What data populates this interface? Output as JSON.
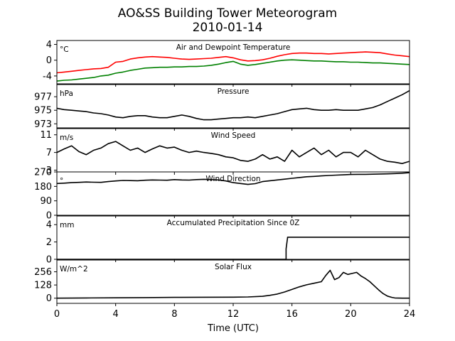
{
  "figure": {
    "title_line1": "AO&SS Building Tower Meteorogram",
    "title_line2": "2010-01-14",
    "xlabel": "Time (UTC)"
  },
  "chart_data": {
    "type": "line",
    "x_ticks": [
      0,
      4,
      8,
      12,
      16,
      20,
      24
    ],
    "xlim": [
      0,
      24
    ],
    "panels": [
      {
        "id": "temperature",
        "title": "Air and Dewpoint Temperature",
        "unit": "°C",
        "ylim": [
          -6,
          5
        ],
        "yticks": [
          4,
          0,
          -4
        ],
        "series": [
          {
            "color": "#ff0000",
            "x": [
              0,
              0.5,
              1,
              1.5,
              2,
              2.5,
              3,
              3.5,
              4,
              4.5,
              5,
              5.5,
              6,
              6.5,
              7,
              7.5,
              8,
              8.5,
              9,
              9.5,
              10,
              10.5,
              11,
              11.5,
              12,
              12.5,
              13,
              13.5,
              14,
              14.5,
              15,
              15.5,
              16,
              16.5,
              17,
              17.5,
              18,
              18.5,
              19,
              19.5,
              20,
              20.5,
              21,
              21.5,
              22,
              22.5,
              23,
              23.5,
              24
            ],
            "y": [
              -3.2,
              -3.0,
              -2.8,
              -2.6,
              -2.4,
              -2.2,
              -2.1,
              -1.8,
              -0.5,
              -0.3,
              0.3,
              0.6,
              0.8,
              0.9,
              0.8,
              0.7,
              0.5,
              0.3,
              0.2,
              0.3,
              0.4,
              0.5,
              0.7,
              0.9,
              0.6,
              0.1,
              -0.2,
              -0.1,
              0.1,
              0.5,
              1.0,
              1.4,
              1.7,
              1.8,
              1.8,
              1.7,
              1.7,
              1.6,
              1.7,
              1.8,
              1.9,
              2.0,
              2.1,
              2.0,
              1.9,
              1.6,
              1.3,
              1.1,
              0.9
            ]
          },
          {
            "color": "#008000",
            "x": [
              0,
              0.5,
              1,
              1.5,
              2,
              2.5,
              3,
              3.5,
              4,
              4.5,
              5,
              5.5,
              6,
              6.5,
              7,
              7.5,
              8,
              8.5,
              9,
              9.5,
              10,
              10.5,
              11,
              11.5,
              12,
              12.5,
              13,
              13.5,
              14,
              14.5,
              15,
              15.5,
              16,
              16.5,
              17,
              17.5,
              18,
              18.5,
              19,
              19.5,
              20,
              20.5,
              21,
              21.5,
              22,
              22.5,
              23,
              23.5,
              24
            ],
            "y": [
              -5.3,
              -5.1,
              -5.0,
              -4.8,
              -4.6,
              -4.4,
              -4.0,
              -3.8,
              -3.3,
              -3.0,
              -2.6,
              -2.3,
              -2.0,
              -1.9,
              -1.8,
              -1.8,
              -1.7,
              -1.7,
              -1.6,
              -1.6,
              -1.5,
              -1.3,
              -1.0,
              -0.6,
              -0.3,
              -1.0,
              -1.3,
              -1.1,
              -0.8,
              -0.5,
              -0.2,
              0.0,
              0.1,
              0.0,
              -0.1,
              -0.2,
              -0.2,
              -0.3,
              -0.4,
              -0.4,
              -0.5,
              -0.5,
              -0.6,
              -0.7,
              -0.7,
              -0.8,
              -0.9,
              -1.0,
              -1.1
            ]
          }
        ]
      },
      {
        "id": "pressure",
        "title": "Pressure",
        "unit": "hPa",
        "ylim": [
          972.4,
          978.8
        ],
        "yticks": [
          977,
          975,
          973
        ],
        "series": [
          {
            "color": "#000000",
            "x": [
              0,
              0.5,
              1,
              1.5,
              2,
              2.5,
              3,
              3.5,
              4,
              4.5,
              5,
              5.5,
              6,
              6.5,
              7,
              7.5,
              8,
              8.5,
              9,
              9.5,
              10,
              10.5,
              11,
              11.5,
              12,
              12.5,
              13,
              13.5,
              14,
              14.5,
              15,
              15.5,
              16,
              16.5,
              17,
              17.5,
              18,
              18.5,
              19,
              19.5,
              20,
              20.5,
              21,
              21.5,
              22,
              22.5,
              23,
              23.5,
              24
            ],
            "y": [
              975.3,
              975.1,
              975.0,
              974.9,
              974.8,
              974.6,
              974.5,
              974.3,
              974.0,
              973.9,
              974.1,
              974.2,
              974.2,
              974.0,
              973.9,
              973.9,
              974.1,
              974.3,
              974.1,
              973.8,
              973.6,
              973.6,
              973.7,
              973.8,
              973.9,
              973.9,
              974.0,
              973.9,
              974.1,
              974.3,
              974.5,
              974.8,
              975.1,
              975.2,
              975.3,
              975.1,
              975.0,
              975.0,
              975.1,
              975.0,
              975.0,
              975.0,
              975.2,
              975.4,
              975.8,
              976.3,
              976.8,
              977.3,
              977.9
            ]
          }
        ]
      },
      {
        "id": "wind_speed",
        "title": "Wind Speed",
        "unit": "m/s",
        "ylim": [
          2.6,
          12.4
        ],
        "yticks": [
          11,
          7,
          3
        ],
        "series": [
          {
            "color": "#000000",
            "x": [
              0,
              0.5,
              1,
              1.5,
              2,
              2.5,
              3,
              3.5,
              4,
              4.5,
              5,
              5.5,
              6,
              6.5,
              7,
              7.5,
              8,
              8.5,
              9,
              9.5,
              10,
              10.5,
              11,
              11.5,
              12,
              12.5,
              13,
              13.5,
              14,
              14.5,
              15,
              15.5,
              16,
              16.5,
              17,
              17.5,
              18,
              18.5,
              19,
              19.5,
              20,
              20.5,
              21,
              21.5,
              22,
              22.5,
              23,
              23.5,
              24
            ],
            "y": [
              7.0,
              7.8,
              8.5,
              7.2,
              6.5,
              7.5,
              8.0,
              9.0,
              9.5,
              8.5,
              7.5,
              8.0,
              7.0,
              7.8,
              8.5,
              8.0,
              8.2,
              7.5,
              7.0,
              7.3,
              7.0,
              6.8,
              6.5,
              6.0,
              5.8,
              5.2,
              5.0,
              5.5,
              6.5,
              5.5,
              6.0,
              5.0,
              7.5,
              6.0,
              7.0,
              8.0,
              6.5,
              7.5,
              6.0,
              7.0,
              7.0,
              6.0,
              7.5,
              6.5,
              5.5,
              5.0,
              4.8,
              4.5,
              5.0
            ]
          }
        ]
      },
      {
        "id": "wind_direction",
        "title": "Wind Direction",
        "unit": "°",
        "ylim": [
          0,
          270
        ],
        "yticks": [
          270,
          180,
          90,
          0
        ],
        "series": [
          {
            "color": "#000000",
            "x": [
              0,
              0.5,
              1,
              1.5,
              2,
              2.5,
              3,
              3.5,
              4,
              4.5,
              5,
              5.5,
              6,
              6.5,
              7,
              7.5,
              8,
              8.5,
              9,
              9.5,
              10,
              10.5,
              11,
              11.5,
              12,
              12.5,
              13,
              13.5,
              14,
              14.5,
              15,
              15.5,
              16,
              16.5,
              17,
              17.5,
              18,
              18.5,
              19,
              19.5,
              20,
              20.5,
              21,
              21.5,
              22,
              22.5,
              23,
              23.5,
              24
            ],
            "y": [
              198,
              200,
              203,
              205,
              207,
              206,
              205,
              210,
              214,
              217,
              216,
              215,
              218,
              220,
              219,
              218,
              222,
              220,
              219,
              222,
              224,
              222,
              220,
              214,
              203,
              198,
              192,
              197,
              210,
              215,
              220,
              225,
              230,
              235,
              240,
              242,
              245,
              248,
              250,
              252,
              254,
              255,
              255,
              256,
              257,
              258,
              260,
              262,
              265
            ]
          }
        ]
      },
      {
        "id": "precipitation",
        "title": "Accumulated Precipitation Since 0Z",
        "unit": "mm",
        "ylim": [
          0,
          5
        ],
        "yticks": [
          4,
          2,
          0
        ],
        "series": [
          {
            "color": "#000000",
            "x": [
              0,
              15.6,
              15.6,
              15.7,
              15.7,
              24
            ],
            "y": [
              0,
              0,
              1.2,
              2.5,
              2.55,
              2.55
            ]
          }
        ]
      },
      {
        "id": "solar_flux",
        "title": "Solar Flux",
        "unit": "W/m^2",
        "ylim": [
          -50,
          370
        ],
        "yticks": [
          256,
          128,
          0
        ],
        "series": [
          {
            "color": "#000000",
            "x": [
              0,
              2,
              4,
              6,
              8,
              10,
              12,
              13,
              14,
              14.5,
              15,
              15.5,
              16,
              16.5,
              17,
              17.5,
              18,
              18.3,
              18.6,
              18.9,
              19.2,
              19.5,
              19.8,
              20.1,
              20.4,
              20.7,
              21,
              21.3,
              21.6,
              21.9,
              22.2,
              22.5,
              22.8,
              23,
              23.5,
              24
            ],
            "y": [
              0,
              2,
              4,
              6,
              8,
              9,
              10,
              12,
              18,
              28,
              40,
              60,
              85,
              110,
              130,
              145,
              160,
              220,
              270,
              180,
              200,
              250,
              230,
              240,
              250,
              215,
              190,
              160,
              120,
              80,
              45,
              20,
              8,
              2,
              0,
              0
            ]
          }
        ]
      }
    ]
  }
}
